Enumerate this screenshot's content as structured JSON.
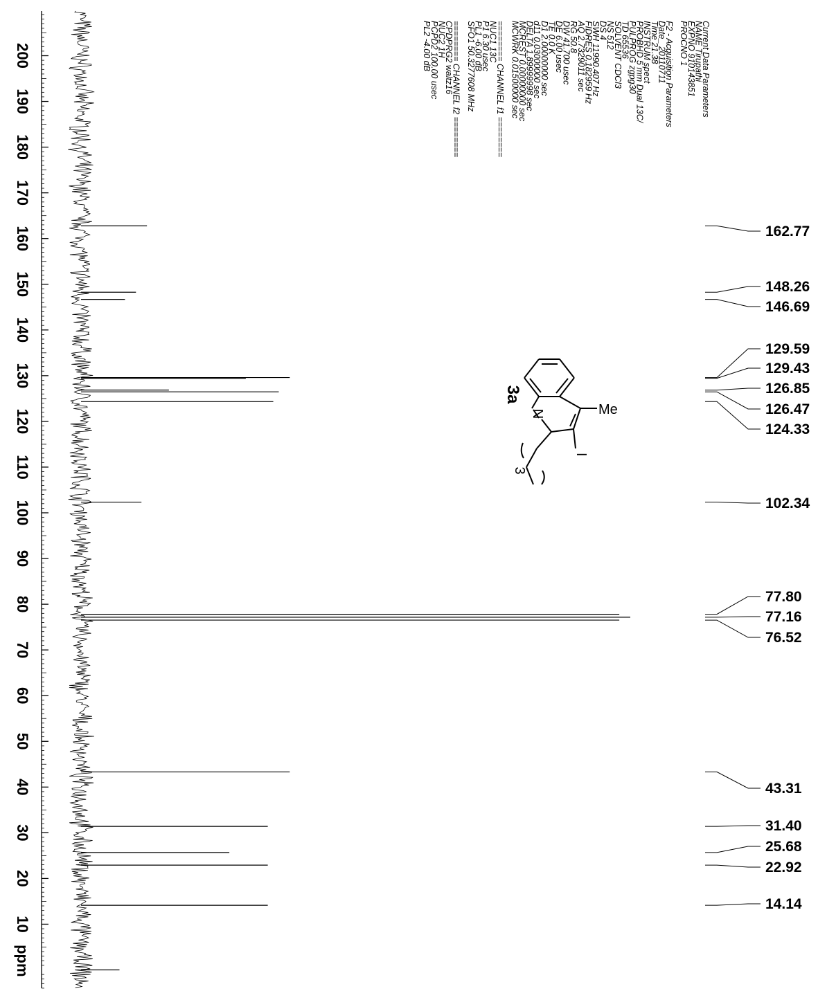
{
  "chart_data": {
    "type": "line",
    "title": "",
    "xlabel": "ppm",
    "ylabel": "",
    "xlim": [
      215,
      0
    ],
    "ticks": [
      "200",
      "190",
      "180",
      "170",
      "160",
      "150",
      "140",
      "130",
      "120",
      "110",
      "100",
      "90",
      "80",
      "70",
      "60",
      "50",
      "40",
      "30",
      "20",
      "10",
      "ppm"
    ],
    "tick_values": [
      200,
      190,
      180,
      170,
      160,
      150,
      140,
      130,
      120,
      110,
      100,
      90,
      80,
      70,
      60,
      50,
      40,
      30,
      20,
      10
    ],
    "series": [
      {
        "peaks": [
          {
            "ppm": 162.77,
            "intensity": 0.12
          },
          {
            "ppm": 148.26,
            "intensity": 0.1
          },
          {
            "ppm": 146.69,
            "intensity": 0.08
          },
          {
            "ppm": 129.59,
            "intensity": 0.38
          },
          {
            "ppm": 129.43,
            "intensity": 0.3
          },
          {
            "ppm": 126.85,
            "intensity": 0.16
          },
          {
            "ppm": 126.47,
            "intensity": 0.36
          },
          {
            "ppm": 124.33,
            "intensity": 0.35
          },
          {
            "ppm": 102.34,
            "intensity": 0.11
          },
          {
            "ppm": 77.8,
            "intensity": 0.98
          },
          {
            "ppm": 77.16,
            "intensity": 1.0
          },
          {
            "ppm": 76.52,
            "intensity": 0.98
          },
          {
            "ppm": 43.31,
            "intensity": 0.38
          },
          {
            "ppm": 31.4,
            "intensity": 0.34
          },
          {
            "ppm": 25.68,
            "intensity": 0.27
          },
          {
            "ppm": 22.92,
            "intensity": 0.34
          },
          {
            "ppm": 14.14,
            "intensity": 0.34
          },
          {
            "ppm": 0.0,
            "intensity": 0.07
          }
        ]
      }
    ],
    "peak_labels": [
      "162.77",
      "148.26",
      "146.69",
      "129.59",
      "129.43",
      "126.85",
      "126.47",
      "124.33",
      "102.34",
      "77.80",
      "77.16",
      "76.52",
      "43.31",
      "31.40",
      "25.68",
      "22.92",
      "14.14"
    ],
    "grid": false
  },
  "parameters": {
    "current": [
      "Current Data Parameters",
      "NAME        Tirupathi",
      "EXPNO       910143851",
      "PROCNO              1"
    ],
    "acquisition": [
      "F2 - Acquisition Parameters",
      "Date_          20110711",
      "Time               21.38",
      "INSTRUM            spect",
      "PROBHD   5 mm Dual 13C/",
      "PULPROG          zgpg30",
      "TD                65536",
      "SOLVENT           CDCl3",
      "NS                  512",
      "DS                    4",
      "SWH         11990.407 Hz",
      "FIDRES       0.182959 Hz",
      "AQ         2.7329011 sec",
      "RG                 50.8",
      "DW            41.700 usec",
      "DE              6.00 usec",
      "TE                0.0 K",
      "D1        2.00000000 sec",
      "d11       0.03000000 sec",
      "DELTA     1.89999998 sec",
      "MCREST    0.00000000 sec",
      "MCWRK     0.01500000 sec"
    ],
    "channel_f1": [
      "======== CHANNEL f1 ========",
      "NUC1                13C",
      "P1            6.30 usec",
      "PL1             -6.00 dB",
      "SFO1      50.3277608 MHz"
    ],
    "channel_f2": [
      "======== CHANNEL f2 ========",
      "CPDPRG2          waltz16",
      "NUC2                  1H",
      "PCPD2        100.00 usec",
      "PL2              -4.00 dB"
    ]
  },
  "structure": {
    "compound_label": "3a",
    "atom_N": "N",
    "substituent_methyl": "Me",
    "substituent_iodo": "I",
    "chain_repeat": "3"
  }
}
